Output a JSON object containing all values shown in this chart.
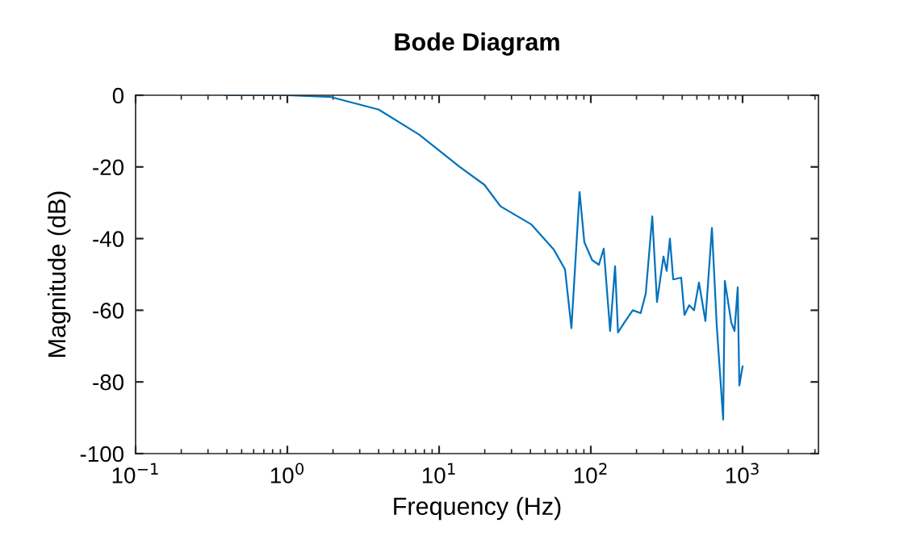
{
  "chart_data": {
    "type": "line",
    "title": "Bode Diagram",
    "xlabel": "Frequency (Hz)",
    "ylabel": "Magnitude (dB)",
    "log": "x",
    "xlim": [
      0.1,
      3162
    ],
    "ylim": [
      -100,
      0
    ],
    "xticks": [
      {
        "value": 0.1,
        "label": "10$^{−1}$"
      },
      {
        "value": 1,
        "label": "10$^{0}$"
      },
      {
        "value": 10,
        "label": "10$^{1}$"
      },
      {
        "value": 100,
        "label": "10$^{2}$"
      },
      {
        "value": 1000,
        "label": "10$^{3}$"
      }
    ],
    "yticks": [
      -100,
      -80,
      -60,
      -40,
      -20,
      0
    ],
    "grid": false,
    "marker": "none",
    "line_style": "solid",
    "series": [
      {
        "color": "#0072bd",
        "x": [
          0.39,
          1,
          1.94,
          4.0,
          7.4,
          13.7,
          19.9,
          25.4,
          40.4,
          56.9,
          67.6,
          74.5,
          84.3,
          90.6,
          102,
          113,
          121.6,
          134,
          144.5,
          151,
          166,
          189,
          213,
          230,
          254,
          273,
          301,
          316,
          332,
          349,
          394,
          414,
          445,
          479,
          516,
          569,
          628,
          676,
          745,
          764,
          843,
          885,
          929,
          952,
          1000
        ],
        "values": [
          0,
          0,
          -0.5,
          -4,
          -11,
          -20,
          -25,
          -31,
          -36,
          -43,
          -48.6,
          -65,
          -27,
          -41,
          -46,
          -47.3,
          -42.8,
          -65.8,
          -47.7,
          -66.2,
          -63.5,
          -60,
          -60.8,
          -55.4,
          -33.8,
          -57.7,
          -45,
          -49,
          -40,
          -51.4,
          -50.9,
          -61.3,
          -58.6,
          -60,
          -52.3,
          -63,
          -37,
          -64.4,
          -90.5,
          -51.8,
          -63.5,
          -65.8,
          -53.6,
          -81,
          -75.7
        ]
      }
    ]
  }
}
